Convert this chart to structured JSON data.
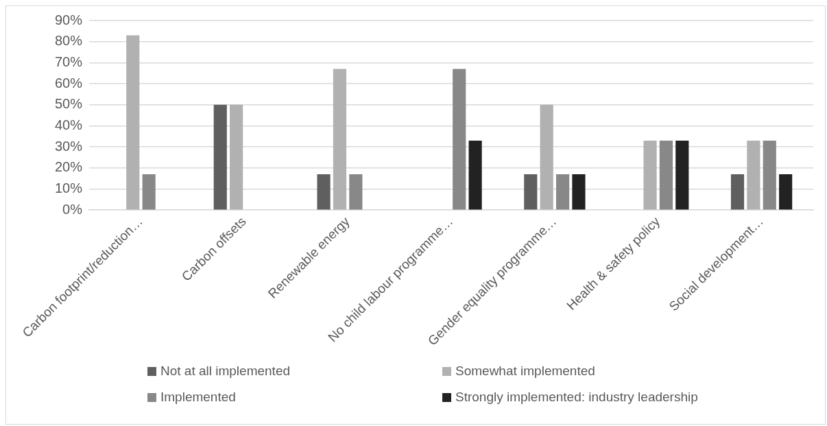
{
  "chart_data": {
    "type": "bar",
    "categories": [
      "Carbon footprint/reduction…",
      "Carbon offsets",
      "Renewable energy",
      "No child labour programme…",
      "Gender equality programme…",
      "Health & safety policy",
      "Social development…"
    ],
    "series": [
      {
        "name": "Not at all implemented",
        "color": "#5f5f5f",
        "values": [
          0,
          50,
          17,
          0,
          17,
          0,
          17
        ]
      },
      {
        "name": "Somewhat implemented",
        "color": "#b1b1b1",
        "values": [
          83,
          50,
          67,
          0,
          50,
          33,
          33
        ]
      },
      {
        "name": "Implemented",
        "color": "#888888",
        "values": [
          17,
          0,
          17,
          67,
          17,
          33,
          33
        ]
      },
      {
        "name": "Strongly implemented: industry leadership",
        "color": "#222222",
        "values": [
          0,
          0,
          0,
          33,
          17,
          33,
          17
        ]
      }
    ],
    "ylim": [
      0,
      90
    ],
    "yticks": [
      {
        "value": 0,
        "label": "0%"
      },
      {
        "value": 10,
        "label": "10%"
      },
      {
        "value": 20,
        "label": "20%"
      },
      {
        "value": 30,
        "label": "30%"
      },
      {
        "value": 40,
        "label": "40%"
      },
      {
        "value": 50,
        "label": "50%"
      },
      {
        "value": 60,
        "label": "60%"
      },
      {
        "value": 70,
        "label": "70%"
      },
      {
        "value": 80,
        "label": "80%"
      },
      {
        "value": 90,
        "label": "90%"
      }
    ],
    "grid": "y",
    "legend": "bottom"
  }
}
